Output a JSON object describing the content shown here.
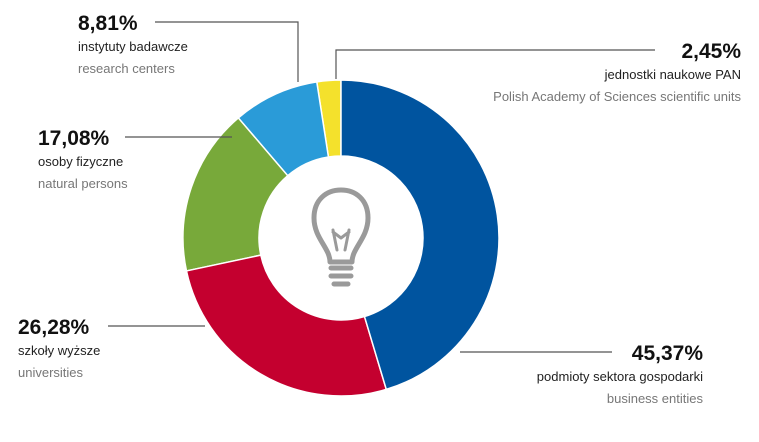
{
  "chart_data": {
    "type": "donut",
    "categories": [
      "podmioty sektora gospodarki",
      "szkoły wyższe",
      "osoby fizyczne",
      "instytuty badawcze",
      "jednostki naukowe PAN"
    ],
    "category_translations": [
      "business entities",
      "universities",
      "natural persons",
      "research centers",
      "Polish Academy of Sciences scientific units"
    ],
    "values": [
      45.37,
      26.28,
      17.08,
      8.81,
      2.45
    ],
    "value_labels": [
      "45,37%",
      "26,28%",
      "17,08%",
      "8,81%",
      "2,45%"
    ],
    "colors": [
      "#00549f",
      "#c4002f",
      "#78a93a",
      "#2a9bd8",
      "#f4e12c"
    ]
  }
}
